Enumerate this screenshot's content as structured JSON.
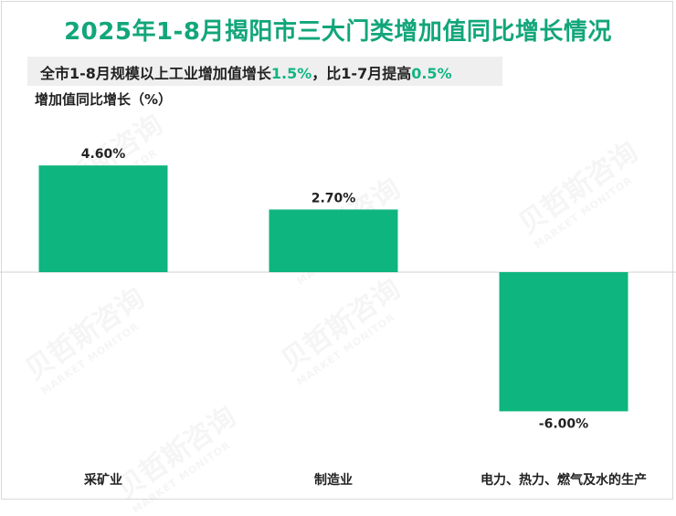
{
  "title": "2025年1-8月揭阳市三大门类增加值同比增长情况",
  "summary": {
    "text_a": "全市1-8月规模以上工业增加值增长",
    "value_a": "1.5%",
    "text_b": "，比1-7月提高",
    "value_b": "0.5%"
  },
  "watermark": {
    "brand": "贝哲斯咨询",
    "sub": "MARKET MONITOR"
  },
  "colors": {
    "bar": "#0fb57f",
    "title": "#12a67a",
    "highlight": "#12b584"
  },
  "chart_data": {
    "type": "bar",
    "title": "2025年1-8月揭阳市三大门类增加值同比增长情况",
    "ylabel": "增加值同比增长（%）",
    "categories": [
      "采矿业",
      "制造业",
      "电力、热力、燃气及水的生产"
    ],
    "values": [
      4.6,
      2.7,
      -6.0
    ],
    "data_labels": [
      "4.60%",
      "2.70%",
      "-6.00%"
    ],
    "ylim": [
      -7.5,
      7.5
    ],
    "grid": false,
    "legend": "none"
  }
}
